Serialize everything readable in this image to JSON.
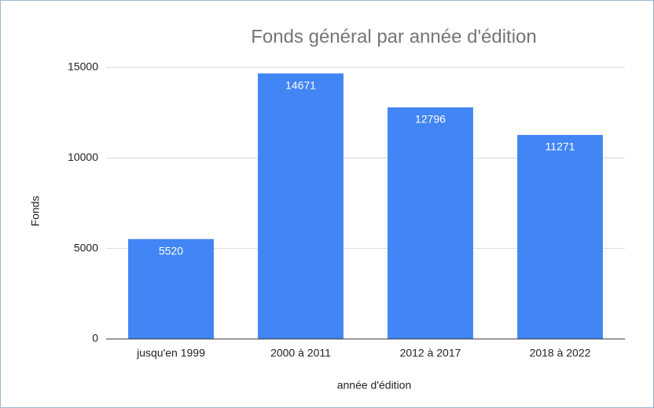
{
  "chart_data": {
    "type": "bar",
    "title": "Fonds général par année d'édition",
    "x_label": "année d'édition",
    "y_label": "Fonds",
    "categories": [
      "jusqu'en 1999",
      "2000 à 2011",
      "2012 à 2017",
      "2018 à 2022"
    ],
    "values": [
      5520,
      14671,
      12796,
      11271
    ],
    "color": "#4285f4",
    "ylim": [
      0,
      15000
    ],
    "yticks": [
      0,
      5000,
      10000,
      15000
    ],
    "grid": true
  }
}
